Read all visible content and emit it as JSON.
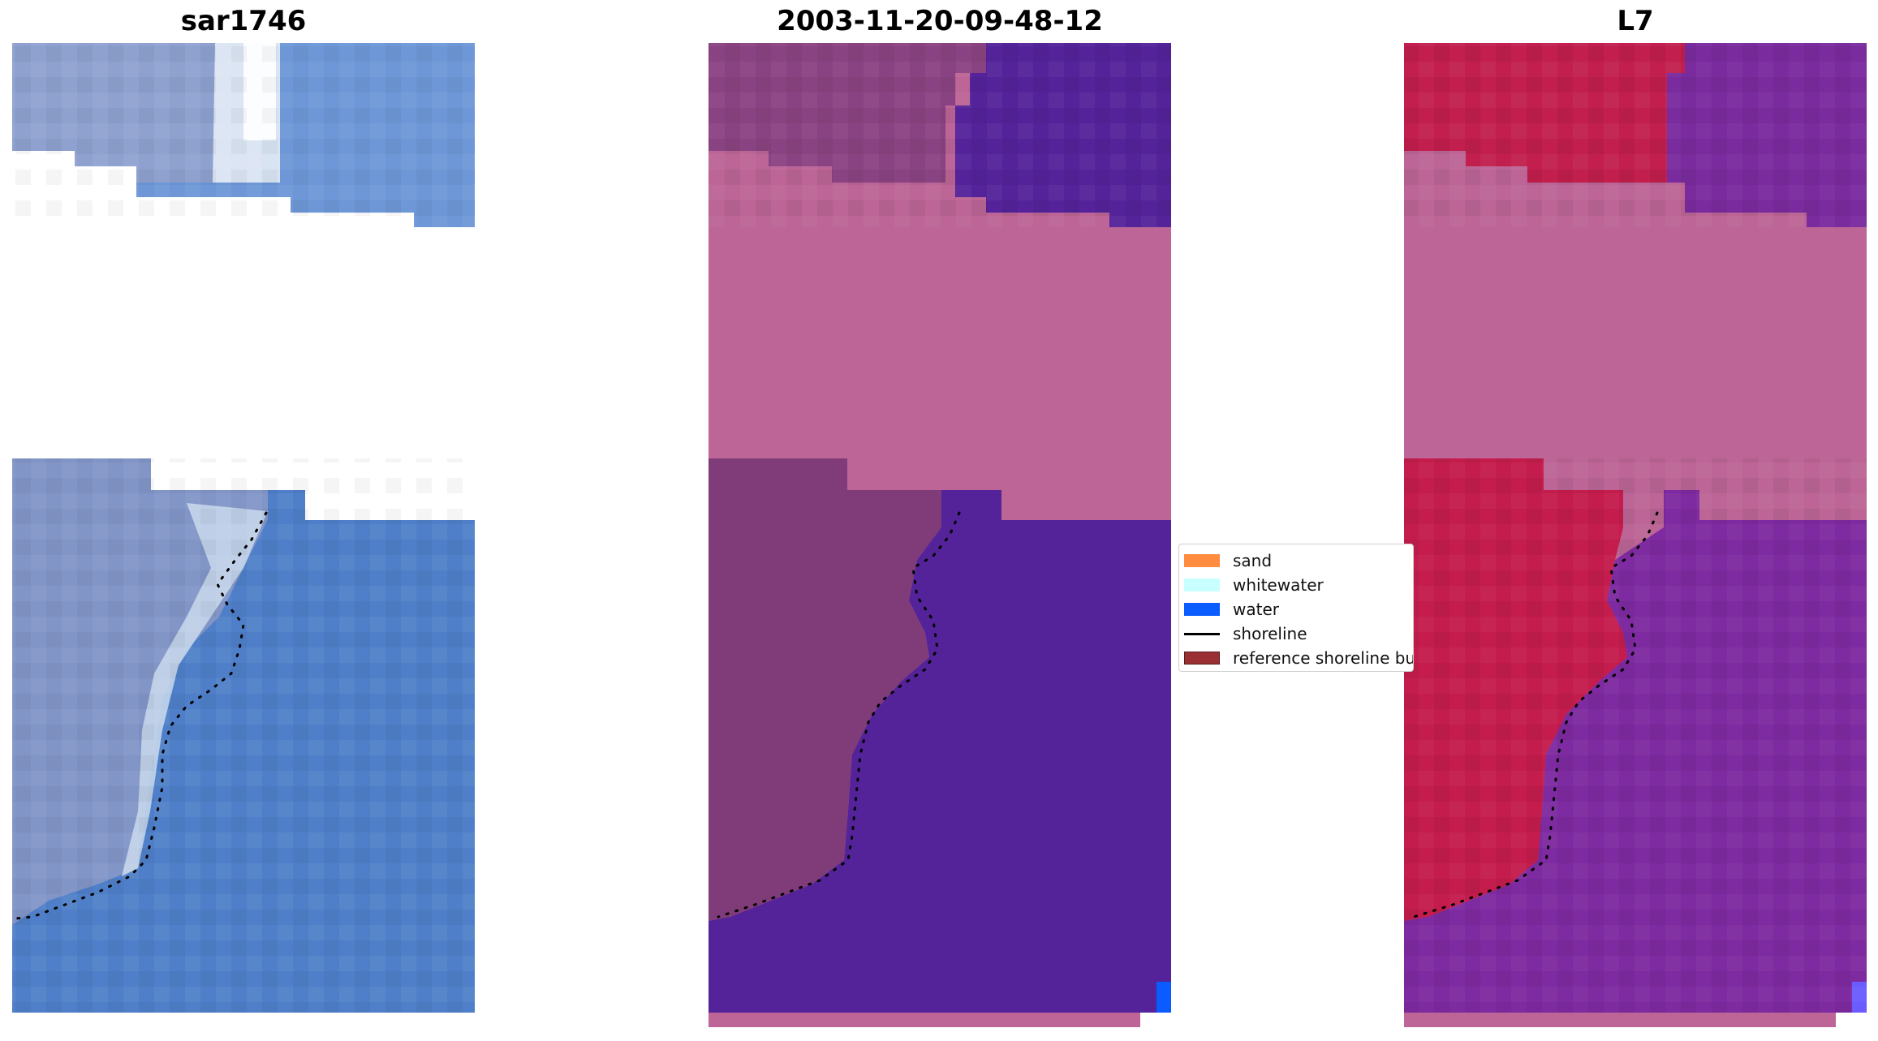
{
  "panels": [
    {
      "title": "sar1746",
      "name": "rgb-panel"
    },
    {
      "title": "2003-11-20-09-48-12",
      "name": "classification-panel"
    },
    {
      "title": "L7",
      "name": "mndwi-panel"
    }
  ],
  "legend": {
    "items": [
      {
        "label": "sand",
        "color": "#ff8c3f",
        "kind": "patch"
      },
      {
        "label": "whitewater",
        "color": "#c8ffff",
        "kind": "patch"
      },
      {
        "label": "water",
        "color": "#0a5cff",
        "kind": "patch"
      },
      {
        "label": "shoreline",
        "color": "#000000",
        "kind": "line"
      },
      {
        "label": "reference shoreline buffer",
        "color": "#9a2f33",
        "kind": "patch"
      }
    ]
  },
  "colors": {
    "rgb_water": "#4f7fc8",
    "rgb_land": "#7f93c4",
    "rgb_white": "#e8f0f6",
    "class_land": "#7f3c78",
    "class_water": "#54239a",
    "class_buffer": "#bc6596",
    "class_water_edge": "#0a5cff",
    "mndwi_land": "#c41c4c",
    "mndwi_water": "#7e2aa0",
    "mndwi_buffer": "#bc6596",
    "shoreline": "#000000"
  }
}
